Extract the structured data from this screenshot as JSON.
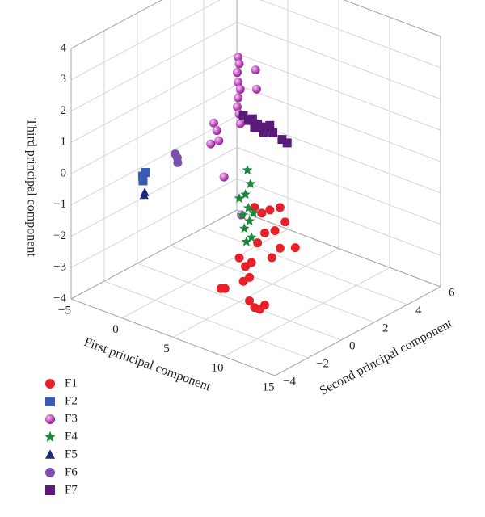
{
  "chart_data": {
    "type": "scatter3d",
    "xlabel": "First principal component",
    "ylabel": "Second principal component",
    "zlabel": "Third principal component",
    "xlim": [
      -5,
      15
    ],
    "ylim": [
      -4,
      6
    ],
    "zlim": [
      -4,
      4
    ],
    "xticks": [
      {
        "value": -5,
        "label": "−5"
      },
      0,
      5,
      10,
      15
    ],
    "yticks": [
      {
        "value": -4,
        "label": "−4"
      },
      {
        "value": -2,
        "label": "−2"
      },
      0,
      2,
      4,
      6
    ],
    "zticks": [
      {
        "value": -4,
        "label": "−4"
      },
      {
        "value": -3,
        "label": "−3"
      },
      {
        "value": -2,
        "label": "−2"
      },
      {
        "value": -1,
        "label": "−1"
      },
      0,
      1,
      2,
      3,
      4
    ],
    "grid": true,
    "series": [
      {
        "name": "F1",
        "color": "#e8202a",
        "marker": "circle",
        "x": [
          6.5,
          7.2,
          8.0,
          9.0,
          9.5,
          10.5,
          8.5,
          7.5,
          9.0,
          6.8,
          8.2,
          5.0,
          5.6,
          6.2,
          6.0,
          5.4,
          3.2,
          3.6,
          6.0,
          7.0,
          7.5,
          6.5
        ],
        "y": [
          0,
          0,
          0,
          0,
          0,
          0,
          0,
          0,
          0,
          0,
          0,
          0,
          0,
          0,
          0,
          0,
          0,
          0,
          0,
          0,
          0,
          0
        ],
        "z": [
          -0.8,
          -0.9,
          -0.7,
          -0.5,
          -0.9,
          -1.6,
          -1.3,
          -1.5,
          -1.8,
          -1.9,
          -2.2,
          -2.6,
          -2.8,
          -2.6,
          -3.1,
          -3.3,
          -3.8,
          -3.75,
          -3.85,
          -4.0,
          -3.8,
          -4.0
        ]
      },
      {
        "name": "F2",
        "color": "#3a5bb5",
        "marker": "square",
        "x": [
          0.4,
          0.6,
          0.5
        ],
        "y": [
          -3,
          -3.1,
          -2.9
        ],
        "z": [
          0.3,
          0.2,
          0.4
        ]
      },
      {
        "name": "F3",
        "color": "#c052c0",
        "marker": "sphere",
        "x": [
          4.9,
          5.0,
          4.8,
          4.9,
          5.1,
          4.9,
          4.8,
          5.0,
          5.1,
          6.6,
          6.7,
          2.5,
          2.8,
          3.0,
          2.2,
          3.5,
          5.2
        ],
        "y": [
          0,
          0,
          0,
          0,
          0,
          0,
          0,
          0,
          0,
          0,
          0,
          0,
          0,
          0,
          0,
          0,
          0
        ],
        "z": [
          3.8,
          3.6,
          3.3,
          3.0,
          2.8,
          2.5,
          2.2,
          2.0,
          1.7,
          3.6,
          3.0,
          1.4,
          1.2,
          0.9,
          0.7,
          -0.2,
          -1.2
        ]
      },
      {
        "name": "F4",
        "color": "#1a8a3a",
        "marker": "star",
        "x": [
          5.8,
          6.1,
          5.6,
          5.0,
          5.9,
          6.4,
          5.3,
          6.0,
          5.5,
          6.2,
          5.7
        ],
        "y": [
          0,
          0,
          0,
          0,
          0,
          0,
          0,
          0,
          0,
          0,
          0
        ],
        "z": [
          0.3,
          -0.1,
          -0.5,
          -0.7,
          -0.9,
          -1.0,
          -1.2,
          -1.3,
          -1.6,
          -1.8,
          -2.0
        ]
      },
      {
        "name": "F5",
        "color": "#1f2b7a",
        "marker": "triangle",
        "x": [
          0.6,
          0.7
        ],
        "y": [
          -3,
          -3.1
        ],
        "z": [
          -0.2,
          -0.25
        ]
      },
      {
        "name": "F6",
        "color": "#7a4fb0",
        "marker": "circle",
        "x": [
          3.6,
          3.8,
          4.0
        ],
        "y": [
          -3,
          -3,
          -3.1
        ],
        "z": [
          1.4,
          1.3,
          1.2
        ]
      },
      {
        "name": "F7",
        "color": "#5a1a7a",
        "marker": "square",
        "x": [
          5.4,
          5.9,
          6.3,
          6.8,
          7.2,
          7.6,
          8.0,
          8.3,
          9.2,
          9.7,
          6.5,
          7.4
        ],
        "y": [
          0,
          0,
          0,
          0,
          0,
          0,
          0,
          0,
          0,
          0,
          0,
          0
        ],
        "z": [
          2.0,
          1.9,
          2.0,
          1.9,
          1.85,
          1.9,
          2.0,
          1.8,
          1.7,
          1.65,
          1.75,
          1.7
        ]
      }
    ]
  }
}
